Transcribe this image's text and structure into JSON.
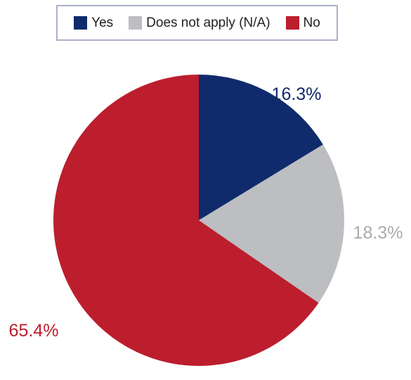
{
  "chart_data": {
    "type": "pie",
    "title": "",
    "legend_placement": "top",
    "series": [
      {
        "name": "Yes",
        "value": 16.3,
        "label": "16.3%",
        "color": "#0f2b6b"
      },
      {
        "name": "Does not apply (N/A)",
        "value": 18.3,
        "label": "18.3%",
        "color": "#bcbec2"
      },
      {
        "name": "No",
        "value": 65.4,
        "label": "65.4%",
        "color": "#bc1e2d"
      }
    ]
  }
}
